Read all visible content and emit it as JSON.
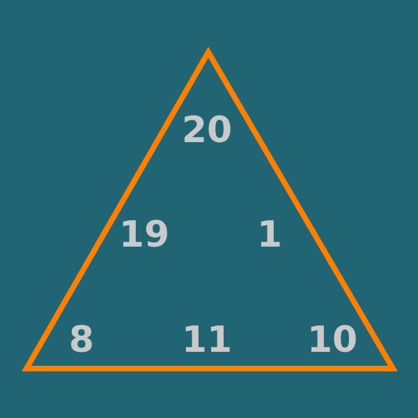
{
  "colors": {
    "background": "#216474",
    "triangle_stroke": "#ff8000",
    "number_text": "#c8cacc"
  },
  "puzzle": {
    "numbers": {
      "top": "20",
      "left_middle": "19",
      "right_middle": "1",
      "bottom_left": "8",
      "bottom_middle": "11",
      "bottom_right": "10"
    }
  }
}
